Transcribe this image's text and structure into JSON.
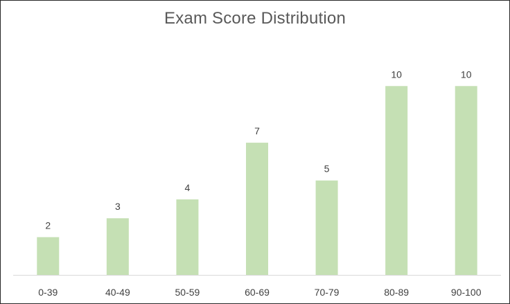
{
  "chart_data": {
    "type": "bar",
    "title": "Exam Score Distribution",
    "xlabel": "",
    "ylabel": "",
    "categories": [
      "0-39",
      "40-49",
      "50-59",
      "60-69",
      "70-79",
      "80-89",
      "90-100"
    ],
    "values": [
      2,
      3,
      4,
      7,
      5,
      10,
      10
    ],
    "ylim": [
      0,
      11
    ],
    "grid": false,
    "legend": "none",
    "data_labels": true,
    "bar_color": "#c5e0b4",
    "axis_color": "#d9d9d9"
  }
}
